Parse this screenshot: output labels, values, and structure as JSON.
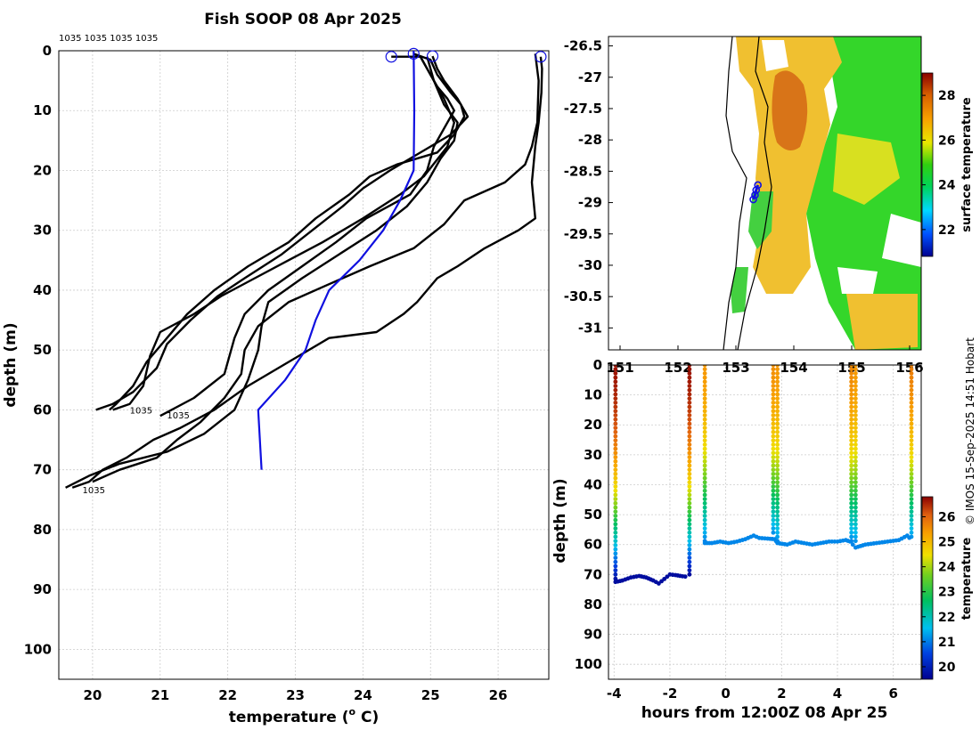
{
  "title": "Fish SOOP 08 Apr 2025",
  "credit": "© IMOS 15-Sep-2025 14:51 Hobart",
  "chart_data": [
    {
      "id": "profiles",
      "type": "line",
      "xlabel": "temperature (° C)",
      "xlabel_main": "temperature (",
      "xlabel_sup": "o",
      "xlabel_end": " C)",
      "ylabel": "depth (m)",
      "xlim": [
        19.5,
        26.75
      ],
      "ylim": [
        0,
        105
      ],
      "y_reversed": true,
      "xticks": [
        20,
        21,
        22,
        23,
        24,
        25,
        26
      ],
      "yticks": [
        0,
        10,
        20,
        30,
        40,
        50,
        60,
        70,
        80,
        90,
        100
      ],
      "grid": true,
      "top_labels": "1035 1035 1035 1035",
      "annotations": [
        {
          "text": "1035",
          "x": 20.55,
          "y": 60
        },
        {
          "text": "1035",
          "x": 21.1,
          "y": 60.8
        },
        {
          "text": "1035",
          "x": 19.85,
          "y": 73.3
        }
      ],
      "start_markers": [
        {
          "x": 24.42,
          "y": 1.0
        },
        {
          "x": 24.75,
          "y": 0.5
        },
        {
          "x": 25.03,
          "y": 0.9
        },
        {
          "x": 26.63,
          "y": 1.0
        }
      ],
      "mean_profile": {
        "color": "#1010e0",
        "points": [
          [
            24.75,
            0
          ],
          [
            24.76,
            10
          ],
          [
            24.75,
            20
          ],
          [
            24.55,
            25
          ],
          [
            24.3,
            30
          ],
          [
            23.95,
            35
          ],
          [
            23.5,
            40
          ],
          [
            23.3,
            45
          ],
          [
            23.15,
            50
          ],
          [
            22.85,
            55
          ],
          [
            22.45,
            60
          ],
          [
            22.5,
            70
          ]
        ]
      },
      "series": [
        {
          "name": "profile-1",
          "points": [
            [
              24.42,
              1
            ],
            [
              24.85,
              1
            ],
            [
              25.0,
              4
            ],
            [
              25.1,
              6
            ],
            [
              25.25,
              8
            ],
            [
              25.35,
              10
            ],
            [
              25.2,
              13
            ],
            [
              25.05,
              16
            ],
            [
              24.95,
              20
            ],
            [
              24.7,
              24
            ],
            [
              24.05,
              28
            ],
            [
              23.6,
              32
            ],
            [
              23.1,
              36
            ],
            [
              22.6,
              40
            ],
            [
              22.25,
              44
            ],
            [
              22.1,
              48
            ],
            [
              21.95,
              54
            ],
            [
              21.5,
              58
            ],
            [
              21.0,
              61
            ]
          ]
        },
        {
          "name": "profile-2",
          "points": [
            [
              24.75,
              0.5
            ],
            [
              25.0,
              1.5
            ],
            [
              25.1,
              4
            ],
            [
              25.3,
              7
            ],
            [
              25.45,
              9
            ],
            [
              25.5,
              11
            ],
            [
              25.35,
              14
            ],
            [
              25.1,
              17
            ],
            [
              24.5,
              19
            ],
            [
              24.1,
              21
            ],
            [
              23.8,
              24
            ],
            [
              23.3,
              28
            ],
            [
              22.9,
              32
            ],
            [
              22.3,
              36
            ],
            [
              21.8,
              40
            ],
            [
              21.4,
              44
            ],
            [
              21.1,
              48
            ],
            [
              20.8,
              52
            ],
            [
              20.6,
              56
            ],
            [
              20.35,
              59
            ],
            [
              20.25,
              60
            ]
          ]
        },
        {
          "name": "profile-3",
          "points": [
            [
              25.03,
              0.9
            ],
            [
              25.1,
              3
            ],
            [
              25.2,
              5
            ],
            [
              25.4,
              8
            ],
            [
              25.55,
              11
            ],
            [
              25.3,
              14
            ],
            [
              25.0,
              16
            ],
            [
              24.4,
              20
            ],
            [
              24.0,
              23
            ],
            [
              23.7,
              26
            ],
            [
              23.25,
              30
            ],
            [
              22.8,
              34
            ],
            [
              22.25,
              38
            ],
            [
              21.85,
              41
            ],
            [
              21.45,
              45
            ],
            [
              21.1,
              49
            ],
            [
              20.95,
              53
            ],
            [
              20.6,
              57
            ],
            [
              20.3,
              59
            ],
            [
              20.05,
              60
            ]
          ]
        },
        {
          "name": "profile-4",
          "points": [
            [
              24.85,
              1
            ],
            [
              25.0,
              4
            ],
            [
              25.2,
              8
            ],
            [
              25.35,
              12
            ],
            [
              25.25,
              16
            ],
            [
              24.9,
              21
            ],
            [
              24.55,
              24
            ],
            [
              24.0,
              28
            ],
            [
              23.4,
              32
            ],
            [
              22.9,
              35
            ],
            [
              22.4,
              38
            ],
            [
              21.9,
              41
            ],
            [
              21.5,
              44
            ],
            [
              21.0,
              47
            ],
            [
              20.85,
              51
            ],
            [
              20.75,
              56
            ],
            [
              20.55,
              59
            ],
            [
              20.3,
              60
            ]
          ]
        },
        {
          "name": "profile-5",
          "points": [
            [
              24.95,
              1
            ],
            [
              25.05,
              5
            ],
            [
              25.2,
              9
            ],
            [
              25.4,
              12
            ],
            [
              25.35,
              15
            ],
            [
              25.15,
              18
            ],
            [
              24.95,
              22
            ],
            [
              24.65,
              26
            ],
            [
              24.2,
              30
            ],
            [
              23.65,
              34
            ],
            [
              23.1,
              38
            ],
            [
              22.6,
              42
            ],
            [
              22.5,
              46
            ],
            [
              22.45,
              50
            ],
            [
              22.3,
              55
            ],
            [
              22.1,
              60
            ],
            [
              21.65,
              64
            ],
            [
              21.1,
              67
            ],
            [
              20.4,
              69
            ],
            [
              19.95,
              71
            ],
            [
              19.6,
              73
            ]
          ]
        },
        {
          "name": "profile-6",
          "points": [
            [
              26.55,
              0.5
            ],
            [
              26.6,
              5
            ],
            [
              26.58,
              12
            ],
            [
              26.5,
              16
            ],
            [
              26.4,
              19
            ],
            [
              26.1,
              22
            ],
            [
              25.5,
              25
            ],
            [
              25.2,
              29
            ],
            [
              24.75,
              33
            ],
            [
              24.1,
              36
            ],
            [
              23.5,
              39
            ],
            [
              22.9,
              42
            ],
            [
              22.45,
              46
            ],
            [
              22.25,
              50
            ],
            [
              22.2,
              54
            ],
            [
              21.95,
              58
            ],
            [
              21.6,
              62
            ],
            [
              21.25,
              65
            ],
            [
              20.95,
              68
            ],
            [
              20.4,
              70
            ],
            [
              20.0,
              72
            ]
          ]
        },
        {
          "name": "profile-7",
          "points": [
            [
              26.63,
              1
            ],
            [
              26.65,
              3
            ],
            [
              26.64,
              7
            ],
            [
              26.6,
              12
            ],
            [
              26.55,
              16
            ],
            [
              26.5,
              22
            ],
            [
              26.55,
              28
            ],
            [
              26.3,
              30
            ],
            [
              25.8,
              33
            ],
            [
              25.4,
              36
            ],
            [
              25.1,
              38
            ],
            [
              24.8,
              42
            ],
            [
              24.6,
              44
            ],
            [
              24.2,
              47
            ],
            [
              23.5,
              48
            ],
            [
              22.9,
              52
            ],
            [
              22.3,
              56
            ],
            [
              21.8,
              60
            ],
            [
              21.3,
              63
            ],
            [
              20.9,
              65
            ],
            [
              20.5,
              68
            ],
            [
              20.15,
              70
            ],
            [
              19.95,
              72
            ],
            [
              19.7,
              73
            ]
          ]
        }
      ]
    },
    {
      "id": "sst-map",
      "type": "heatmap",
      "colorbar_label": "surface temperature",
      "colorbar_range": [
        20.8,
        29.0
      ],
      "colorbar_ticks": [
        22,
        24,
        26,
        28
      ],
      "xlim": [
        150.8,
        156.2
      ],
      "ylim": [
        -31.35,
        -26.35
      ],
      "xticks": [
        151,
        152,
        153,
        154,
        155,
        156
      ],
      "xtick_labels_visible": [
        "151",
        "152",
        "153",
        "154",
        "155",
        "156"
      ],
      "yticks": [
        -26.5,
        -27,
        -27.5,
        -28,
        -28.5,
        -29,
        -29.5,
        -30,
        -30.5,
        -31
      ],
      "ytick_labels": [
        "-26.5",
        "-27",
        "-27.5",
        "-28",
        "-28.5",
        "-29",
        "-29.5",
        "-30",
        "-30.5",
        "-31"
      ],
      "track": [
        [
          153.3,
          -28.95
        ],
        [
          153.33,
          -28.88
        ],
        [
          153.35,
          -28.8
        ],
        [
          153.38,
          -28.72
        ]
      ],
      "sst_zones": [
        {
          "name": "warm-core-eddy",
          "value": 27.8
        },
        {
          "name": "warm-coastal-band",
          "value": 25.6
        },
        {
          "name": "offshore-green",
          "value": 24.3
        }
      ]
    },
    {
      "id": "depth-time",
      "type": "scatter",
      "xlabel": "hours from 12:00Z 08 Apr 25",
      "ylabel": "depth (m)",
      "colorbar_label": "temperature",
      "colorbar_range": [
        19.5,
        26.8
      ],
      "colorbar_ticks": [
        20,
        21,
        22,
        23,
        24,
        25,
        26
      ],
      "xlim": [
        -4.2,
        7.0
      ],
      "ylim": [
        0,
        105
      ],
      "y_reversed": true,
      "xticks": [
        -4,
        -2,
        0,
        2,
        4,
        6
      ],
      "yticks": [
        0,
        10,
        20,
        30,
        40,
        50,
        60,
        70,
        80,
        90,
        100
      ],
      "casts": [
        {
          "t": -3.95,
          "surface_temp": 26.6,
          "bottom": 72.5,
          "bottom_temp": 19.6
        },
        {
          "t": -1.3,
          "surface_temp": 26.6,
          "bottom": 70.5,
          "bottom_temp": 19.6
        },
        {
          "t": -0.75,
          "surface_temp": 25.1,
          "bottom": 59,
          "bottom_temp": 21.0
        },
        {
          "t": 1.7,
          "surface_temp": 25.2,
          "bottom": 57,
          "bottom_temp": 21.0
        },
        {
          "t": 1.85,
          "surface_temp": 25.1,
          "bottom": 59.5,
          "bottom_temp": 21.0
        },
        {
          "t": 4.5,
          "surface_temp": 25.3,
          "bottom": 59,
          "bottom_temp": 21.0
        },
        {
          "t": 4.65,
          "surface_temp": 25.1,
          "bottom": 60,
          "bottom_temp": 21.0
        },
        {
          "t": 6.65,
          "surface_temp": 25.4,
          "bottom": 58,
          "bottom_temp": 21.1
        }
      ],
      "bottom_track": [
        [
          -3.95,
          72.5
        ],
        [
          -3.7,
          72
        ],
        [
          -3.4,
          71
        ],
        [
          -3.1,
          70.5
        ],
        [
          -2.85,
          71
        ],
        [
          -2.6,
          72
        ],
        [
          -2.4,
          73
        ],
        [
          -2.2,
          71.5
        ],
        [
          -2.0,
          70
        ],
        [
          -1.8,
          70.2
        ],
        [
          -1.55,
          70.6
        ],
        [
          -1.35,
          70.8
        ],
        [
          -0.75,
          59.5
        ],
        [
          -0.5,
          59.5
        ],
        [
          -0.2,
          59
        ],
        [
          0.1,
          59.5
        ],
        [
          0.4,
          59
        ],
        [
          0.7,
          58.2
        ],
        [
          1.0,
          57
        ],
        [
          1.2,
          57.8
        ],
        [
          1.5,
          58
        ],
        [
          1.75,
          58.2
        ],
        [
          1.85,
          59.5
        ],
        [
          2.2,
          60
        ],
        [
          2.5,
          59
        ],
        [
          2.8,
          59.5
        ],
        [
          3.1,
          60
        ],
        [
          3.4,
          59.5
        ],
        [
          3.7,
          59
        ],
        [
          4.0,
          59
        ],
        [
          4.3,
          58.5
        ],
        [
          4.45,
          59
        ],
        [
          4.65,
          61
        ],
        [
          5.0,
          60
        ],
        [
          5.4,
          59.5
        ],
        [
          5.8,
          59
        ],
        [
          6.2,
          58.5
        ],
        [
          6.5,
          57
        ],
        [
          6.65,
          58.5
        ]
      ]
    }
  ]
}
